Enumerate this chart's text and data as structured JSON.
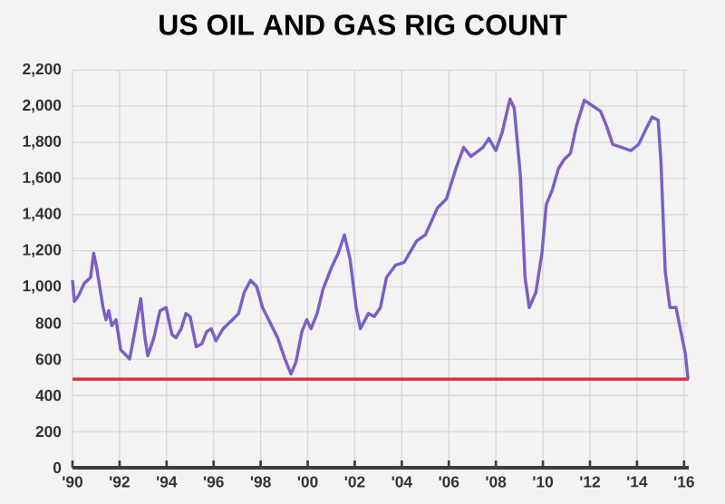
{
  "chart_data": {
    "type": "line",
    "title": "US OIL AND GAS RIG COUNT",
    "grid": true,
    "marker": "none",
    "line_style": "solid",
    "xlim": [
      1990,
      2016.2
    ],
    "ylim": [
      0,
      2200
    ],
    "xticks": [
      {
        "value": 1990,
        "label": "'90"
      },
      {
        "value": 1992,
        "label": "'92"
      },
      {
        "value": 1994,
        "label": "'94"
      },
      {
        "value": 1996,
        "label": "'96"
      },
      {
        "value": 1998,
        "label": "'98"
      },
      {
        "value": 2000,
        "label": "'00"
      },
      {
        "value": 2002,
        "label": "'02"
      },
      {
        "value": 2004,
        "label": "'04"
      },
      {
        "value": 2006,
        "label": "'06"
      },
      {
        "value": 2008,
        "label": "'08"
      },
      {
        "value": 2010,
        "label": "'10"
      },
      {
        "value": 2012,
        "label": "'12"
      },
      {
        "value": 2014,
        "label": "'14"
      },
      {
        "value": 2016,
        "label": "'16"
      }
    ],
    "yticks": [
      0,
      200,
      400,
      600,
      800,
      {
        "value": 1000,
        "label": "1,000"
      },
      {
        "value": 1200,
        "label": "1,200"
      },
      {
        "value": 1400,
        "label": "1,400"
      },
      {
        "value": 1600,
        "label": "1,600"
      },
      {
        "value": 1800,
        "label": "1,800"
      },
      {
        "value": 2000,
        "label": "2,000"
      },
      {
        "value": 2200,
        "label": "2,200"
      }
    ],
    "ref_lines": [
      {
        "axis": "y",
        "value": 490,
        "color": "#e0323c"
      }
    ],
    "series": [
      {
        "color": "#7b5fc4",
        "x": [
          1990.0,
          1990.08,
          1990.26,
          1990.5,
          1990.77,
          1990.9,
          1991.03,
          1991.3,
          1991.42,
          1991.54,
          1991.67,
          1991.85,
          1992.05,
          1992.3,
          1992.43,
          1992.6,
          1992.9,
          1993.08,
          1993.2,
          1993.46,
          1993.72,
          1993.98,
          1994.23,
          1994.4,
          1994.62,
          1994.82,
          1995.0,
          1995.26,
          1995.5,
          1995.7,
          1995.9,
          1996.1,
          1996.4,
          1996.8,
          1997.06,
          1997.3,
          1997.57,
          1997.83,
          1998.08,
          1998.34,
          1998.72,
          1999.03,
          1999.29,
          1999.5,
          1999.75,
          1999.96,
          2000.14,
          2000.4,
          2000.65,
          2001.0,
          2001.3,
          2001.56,
          2001.8,
          2002.06,
          2002.24,
          2002.58,
          2002.83,
          2003.09,
          2003.35,
          2003.73,
          2004.1,
          2004.63,
          2005.0,
          2005.52,
          2005.9,
          2006.3,
          2006.63,
          2006.94,
          2007.45,
          2007.7,
          2008.0,
          2008.27,
          2008.6,
          2008.78,
          2009.04,
          2009.24,
          2009.42,
          2009.7,
          2009.96,
          2010.14,
          2010.4,
          2010.66,
          2010.9,
          2011.17,
          2011.42,
          2011.76,
          2012.07,
          2012.45,
          2012.71,
          2012.97,
          2013.35,
          2013.74,
          2014.07,
          2014.38,
          2014.64,
          2014.9,
          2015.02,
          2015.2,
          2015.4,
          2015.66,
          2015.92,
          2016.05,
          2016.17
        ],
        "values": [
          1037,
          920,
          953,
          1020,
          1053,
          1187,
          1104,
          886,
          819,
          869,
          786,
          819,
          652,
          619,
          602,
          719,
          936,
          719,
          619,
          719,
          869,
          886,
          736,
          719,
          769,
          853,
          836,
          669,
          686,
          752,
          769,
          702,
          769,
          819,
          853,
          970,
          1037,
          1003,
          886,
          819,
          719,
          602,
          518,
          585,
          752,
          819,
          769,
          853,
          987,
          1104,
          1187,
          1288,
          1154,
          886,
          769,
          853,
          836,
          886,
          1053,
          1120,
          1137,
          1254,
          1288,
          1438,
          1488,
          1655,
          1772,
          1722,
          1772,
          1822,
          1755,
          1856,
          2040,
          1990,
          1622,
          1053,
          886,
          970,
          1187,
          1455,
          1538,
          1655,
          1705,
          1739,
          1889,
          2033,
          2006,
          1973,
          1889,
          1789,
          1772,
          1755,
          1789,
          1873,
          1940,
          1923,
          1689,
          1087,
          886,
          886,
          719,
          635,
          490
        ]
      }
    ]
  }
}
